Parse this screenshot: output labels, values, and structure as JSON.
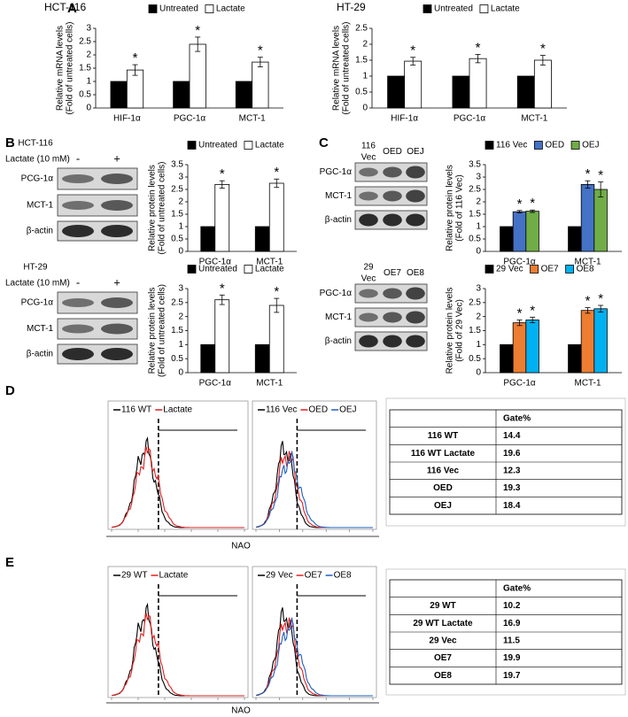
{
  "panel_labels": [
    "A",
    "B",
    "C",
    "D",
    "E"
  ],
  "chart_data": [
    {
      "type": "bar",
      "title": "HCT-116",
      "y_label": [
        "Relative mRNA levels",
        "(Fold of untreated cells)"
      ],
      "categories": [
        "HIF-1α",
        "PGC-1α",
        "MCT-1"
      ],
      "series": [
        {
          "name": "Untreated",
          "color": "#000000",
          "values": [
            1,
            1,
            1
          ]
        },
        {
          "name": "Lactate",
          "color": "#ffffff",
          "values": [
            1.43,
            2.4,
            1.73
          ],
          "errors": [
            0.2,
            0.27,
            0.18
          ],
          "marks": [
            "*",
            "*",
            "*"
          ]
        }
      ],
      "ylim": [
        0,
        3
      ],
      "yticks": [
        0,
        0.5,
        1,
        1.5,
        2,
        2.5,
        3
      ]
    },
    {
      "type": "bar",
      "title": "HT-29",
      "y_label": [
        "Relative mRNA levels",
        "(Fold of untreated cells)"
      ],
      "categories": [
        "HIF-1α",
        "PGC-1α",
        "MCT-1"
      ],
      "series": [
        {
          "name": "Untreated",
          "color": "#000000",
          "values": [
            1,
            1,
            1
          ]
        },
        {
          "name": "Lactate",
          "color": "#ffffff",
          "values": [
            1.47,
            1.55,
            1.5
          ],
          "errors": [
            0.12,
            0.13,
            0.15
          ],
          "marks": [
            "*",
            "*",
            "*"
          ]
        }
      ],
      "ylim": [
        0,
        2.5
      ],
      "yticks": [
        0,
        0.5,
        1,
        1.5,
        2,
        2.5
      ]
    },
    {
      "type": "bar",
      "y_label": [
        "Relative protein levels",
        "(Fold of untreated cells)"
      ],
      "categories": [
        "PGC-1α",
        "MCT-1"
      ],
      "series": [
        {
          "name": "Untreated",
          "color": "#000000",
          "values": [
            1,
            1
          ]
        },
        {
          "name": "Lactate",
          "color": "#ffffff",
          "values": [
            2.7,
            2.75
          ],
          "errors": [
            0.15,
            0.17
          ],
          "marks": [
            "*",
            "*"
          ]
        }
      ],
      "ylim": [
        0,
        3.5
      ],
      "yticks": [
        0,
        0.5,
        1,
        1.5,
        2,
        2.5,
        3,
        3.5
      ]
    },
    {
      "type": "bar",
      "y_label": [
        "Relative protein levels",
        "(Fold of untreated cells)"
      ],
      "categories": [
        "PGC-1α",
        "MCT-1"
      ],
      "series": [
        {
          "name": "Untreated",
          "color": "#000000",
          "values": [
            1,
            1
          ]
        },
        {
          "name": "Lactate",
          "color": "#ffffff",
          "values": [
            2.6,
            2.4
          ],
          "errors": [
            0.17,
            0.25
          ],
          "marks": [
            "*",
            "*"
          ]
        }
      ],
      "ylim": [
        0,
        3
      ],
      "yticks": [
        0,
        0.5,
        1,
        1.5,
        2,
        2.5,
        3
      ]
    },
    {
      "type": "bar",
      "y_label": [
        "Relative protein levels",
        "(Fold of 116 Vec)"
      ],
      "categories": [
        "PGC-1α",
        "MCT-1"
      ],
      "series": [
        {
          "name": "116 Vec",
          "color": "#000000",
          "values": [
            1,
            1
          ]
        },
        {
          "name": "OED",
          "color": "#4472c4",
          "values": [
            1.6,
            2.7
          ],
          "errors": [
            0.05,
            0.15
          ],
          "marks": [
            "*",
            "*"
          ]
        },
        {
          "name": "OEJ",
          "color": "#70ad47",
          "values": [
            1.62,
            2.5
          ],
          "errors": [
            0.05,
            0.3
          ],
          "marks": [
            "*",
            "*"
          ]
        }
      ],
      "ylim": [
        0,
        3.5
      ],
      "yticks": [
        0,
        0.5,
        1,
        1.5,
        2,
        2.5,
        3,
        3.5
      ]
    },
    {
      "type": "bar",
      "y_label": [
        "Relative protein levels",
        "(Fold of 29 Vec)"
      ],
      "categories": [
        "PGC-1α",
        "MCT-1"
      ],
      "series": [
        {
          "name": "29 Vec",
          "color": "#000000",
          "values": [
            1,
            1
          ]
        },
        {
          "name": "OE7",
          "color": "#ed7d31",
          "values": [
            1.78,
            2.22
          ],
          "errors": [
            0.1,
            0.1
          ],
          "marks": [
            "*",
            "*"
          ]
        },
        {
          "name": "OE8",
          "color": "#00b0f0",
          "values": [
            1.88,
            2.28
          ],
          "errors": [
            0.1,
            0.12
          ],
          "marks": [
            "*",
            "*"
          ]
        }
      ],
      "ylim": [
        0,
        3
      ],
      "yticks": [
        0,
        0.5,
        1,
        1.5,
        2,
        2.5,
        3
      ]
    }
  ],
  "blots": [
    {
      "cell_line": "HCT-116",
      "treatment": "Lactate (10 mM)",
      "lanes": [
        [
          "-"
        ],
        [
          "+"
        ]
      ],
      "proteins": [
        "PCG-1α",
        "MCT-1",
        "β-actin"
      ]
    },
    {
      "cell_line": "HT-29",
      "treatment": "Lactate (10 mM)",
      "lanes": [
        [
          "-"
        ],
        [
          "+"
        ]
      ],
      "proteins": [
        "PCG-1α",
        "MCT-1",
        "β-actin"
      ]
    },
    {
      "lanes": [
        [
          "116",
          "Vec"
        ],
        [
          "OED"
        ],
        [
          "OEJ"
        ]
      ],
      "proteins": [
        "PGC-1α",
        "MCT-1",
        "β-actin"
      ]
    },
    {
      "lanes": [
        [
          "29",
          "Vec"
        ],
        [
          "OE7"
        ],
        [
          "OE8"
        ]
      ],
      "proteins": [
        "PGC-1α",
        "MCT-1",
        "β-actin"
      ]
    }
  ],
  "flow_panels": [
    {
      "x_label": "NAO",
      "plots": [
        {
          "legend": [
            {
              "name": "116 WT",
              "color": "#000000"
            },
            {
              "name": "Lactate",
              "color": "#e02020"
            }
          ]
        },
        {
          "legend": [
            {
              "name": "116 Vec",
              "color": "#000000"
            },
            {
              "name": "OED",
              "color": "#e02020"
            },
            {
              "name": "OEJ",
              "color": "#1f5fbf"
            }
          ]
        }
      ],
      "table": {
        "header": "Gate%",
        "rows": [
          [
            "116 WT",
            14.4
          ],
          [
            "116 WT Lactate",
            19.6
          ],
          [
            "116 Vec",
            12.3
          ],
          [
            "OED",
            19.3
          ],
          [
            "OEJ",
            18.4
          ]
        ]
      }
    },
    {
      "x_label": "NAO",
      "plots": [
        {
          "legend": [
            {
              "name": "29 WT",
              "color": "#000000"
            },
            {
              "name": "Lactate",
              "color": "#e02020"
            }
          ]
        },
        {
          "legend": [
            {
              "name": "29 Vec",
              "color": "#000000"
            },
            {
              "name": "OE7",
              "color": "#e02020"
            },
            {
              "name": "OE8",
              "color": "#1f5fbf"
            }
          ]
        }
      ],
      "table": {
        "header": "Gate%",
        "rows": [
          [
            "29 WT",
            10.2
          ],
          [
            "29 WT Lactate",
            16.9
          ],
          [
            "29 Vec",
            11.5
          ],
          [
            "OE7",
            19.9
          ],
          [
            "OE8",
            19.7
          ]
        ]
      }
    }
  ]
}
